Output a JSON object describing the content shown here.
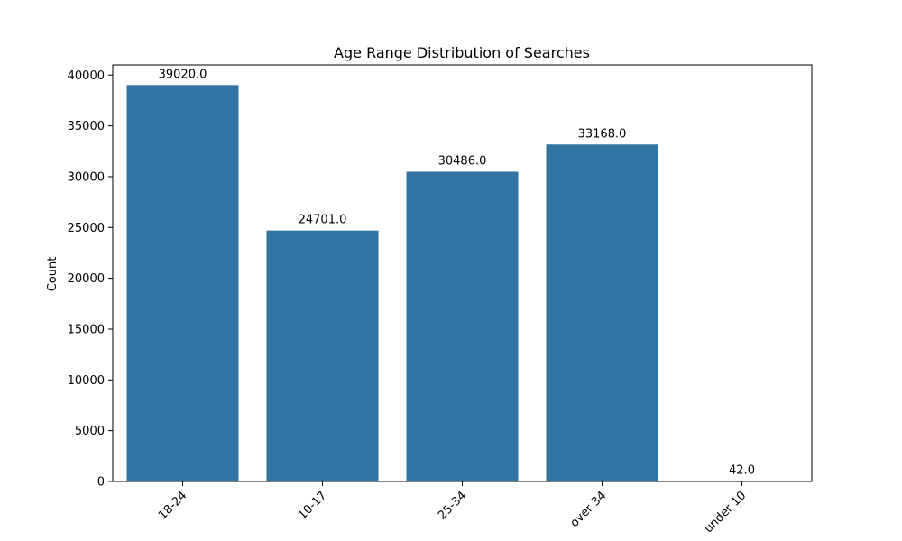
{
  "chart_data": {
    "type": "bar",
    "title": "Age Range Distribution of Searches",
    "xlabel": "",
    "ylabel": "Count",
    "categories": [
      "18-24",
      "10-17",
      "25-34",
      "over 34",
      "under 10"
    ],
    "values": [
      39020.0,
      24701.0,
      30486.0,
      33168.0,
      42.0
    ],
    "data_labels": [
      "39020.0",
      "24701.0",
      "30486.0",
      "33168.0",
      "42.0"
    ],
    "ylim": [
      0,
      41000
    ],
    "yticks": [
      0,
      5000,
      10000,
      15000,
      20000,
      25000,
      30000,
      35000,
      40000
    ],
    "xtick_rotation": 45,
    "grid": false,
    "bar_color": "#3274a1"
  }
}
